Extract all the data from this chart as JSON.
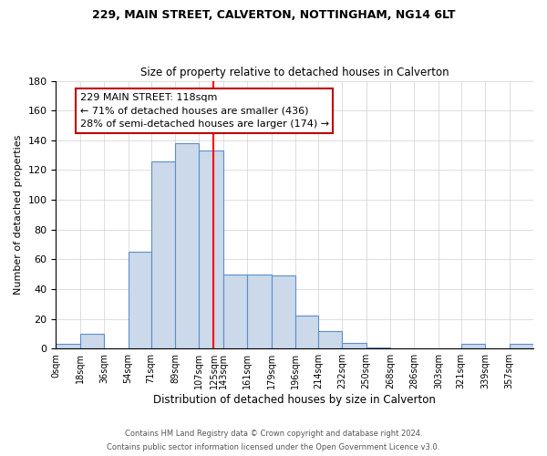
{
  "title": "229, MAIN STREET, CALVERTON, NOTTINGHAM, NG14 6LT",
  "subtitle": "Size of property relative to detached houses in Calverton",
  "xlabel": "Distribution of detached houses by size in Calverton",
  "ylabel": "Number of detached properties",
  "edges": [
    0,
    18,
    36,
    54,
    71,
    89,
    107,
    118,
    125,
    143,
    161,
    179,
    196,
    214,
    232,
    250,
    268,
    286,
    303,
    321,
    339,
    357
  ],
  "heights": [
    3,
    10,
    0,
    65,
    126,
    138,
    133,
    133,
    50,
    50,
    49,
    22,
    12,
    4,
    1,
    0,
    0,
    0,
    3,
    0,
    3
  ],
  "tick_labels": [
    "0sqm",
    "18sqm",
    "36sqm",
    "54sqm",
    "71sqm",
    "89sqm",
    "107sqm",
    "125sqm",
    "143sqm",
    "161sqm",
    "179sqm",
    "196sqm",
    "214sqm",
    "232sqm",
    "250sqm",
    "268sqm",
    "286sqm",
    "303sqm",
    "321sqm",
    "339sqm",
    "357sqm"
  ],
  "bar_color": "#ccd9ea",
  "bar_edge_color": "#5b8fc9",
  "vline_x": 118,
  "vline_color": "red",
  "ylim": [
    0,
    180
  ],
  "yticks": [
    0,
    20,
    40,
    60,
    80,
    100,
    120,
    140,
    160,
    180
  ],
  "annotation_title": "229 MAIN STREET: 118sqm",
  "annotation_line1": "← 71% of detached houses are smaller (436)",
  "annotation_line2": "28% of semi-detached houses are larger (174) →",
  "annotation_box_color": "#ffffff",
  "annotation_box_edge": "#c00000",
  "footer1": "Contains HM Land Registry data © Crown copyright and database right 2024.",
  "footer2": "Contains public sector information licensed under the Open Government Licence v3.0."
}
